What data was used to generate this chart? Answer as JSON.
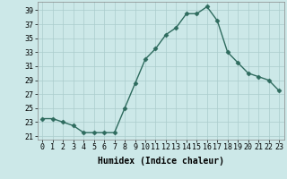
{
  "x": [
    0,
    1,
    2,
    3,
    4,
    5,
    6,
    7,
    8,
    9,
    10,
    11,
    12,
    13,
    14,
    15,
    16,
    17,
    18,
    19,
    20,
    21,
    22,
    23
  ],
  "y": [
    23.5,
    23.5,
    23.0,
    22.5,
    21.5,
    21.5,
    21.5,
    21.5,
    25.0,
    28.5,
    32.0,
    33.5,
    35.5,
    36.5,
    38.5,
    38.5,
    39.5,
    37.5,
    33.0,
    31.5,
    30.0,
    29.5,
    29.0,
    27.5
  ],
  "line_color": "#2e6b5e",
  "marker": "D",
  "markersize": 2.5,
  "linewidth": 1.0,
  "bg_color": "#cce8e8",
  "grid_color": "#aacccc",
  "xlabel": "Humidex (Indice chaleur)",
  "xlabel_fontsize": 7,
  "tick_fontsize": 6,
  "yticks": [
    21,
    23,
    25,
    27,
    29,
    31,
    33,
    35,
    37,
    39
  ],
  "xtick_labels": [
    "0",
    "1",
    "2",
    "3",
    "4",
    "5",
    "6",
    "7",
    "8",
    "9",
    "10",
    "11",
    "12",
    "13",
    "14",
    "15",
    "16",
    "17",
    "18",
    "19",
    "20",
    "21",
    "22",
    "23"
  ],
  "ylim": [
    20.5,
    40.2
  ],
  "xlim": [
    -0.5,
    23.5
  ]
}
